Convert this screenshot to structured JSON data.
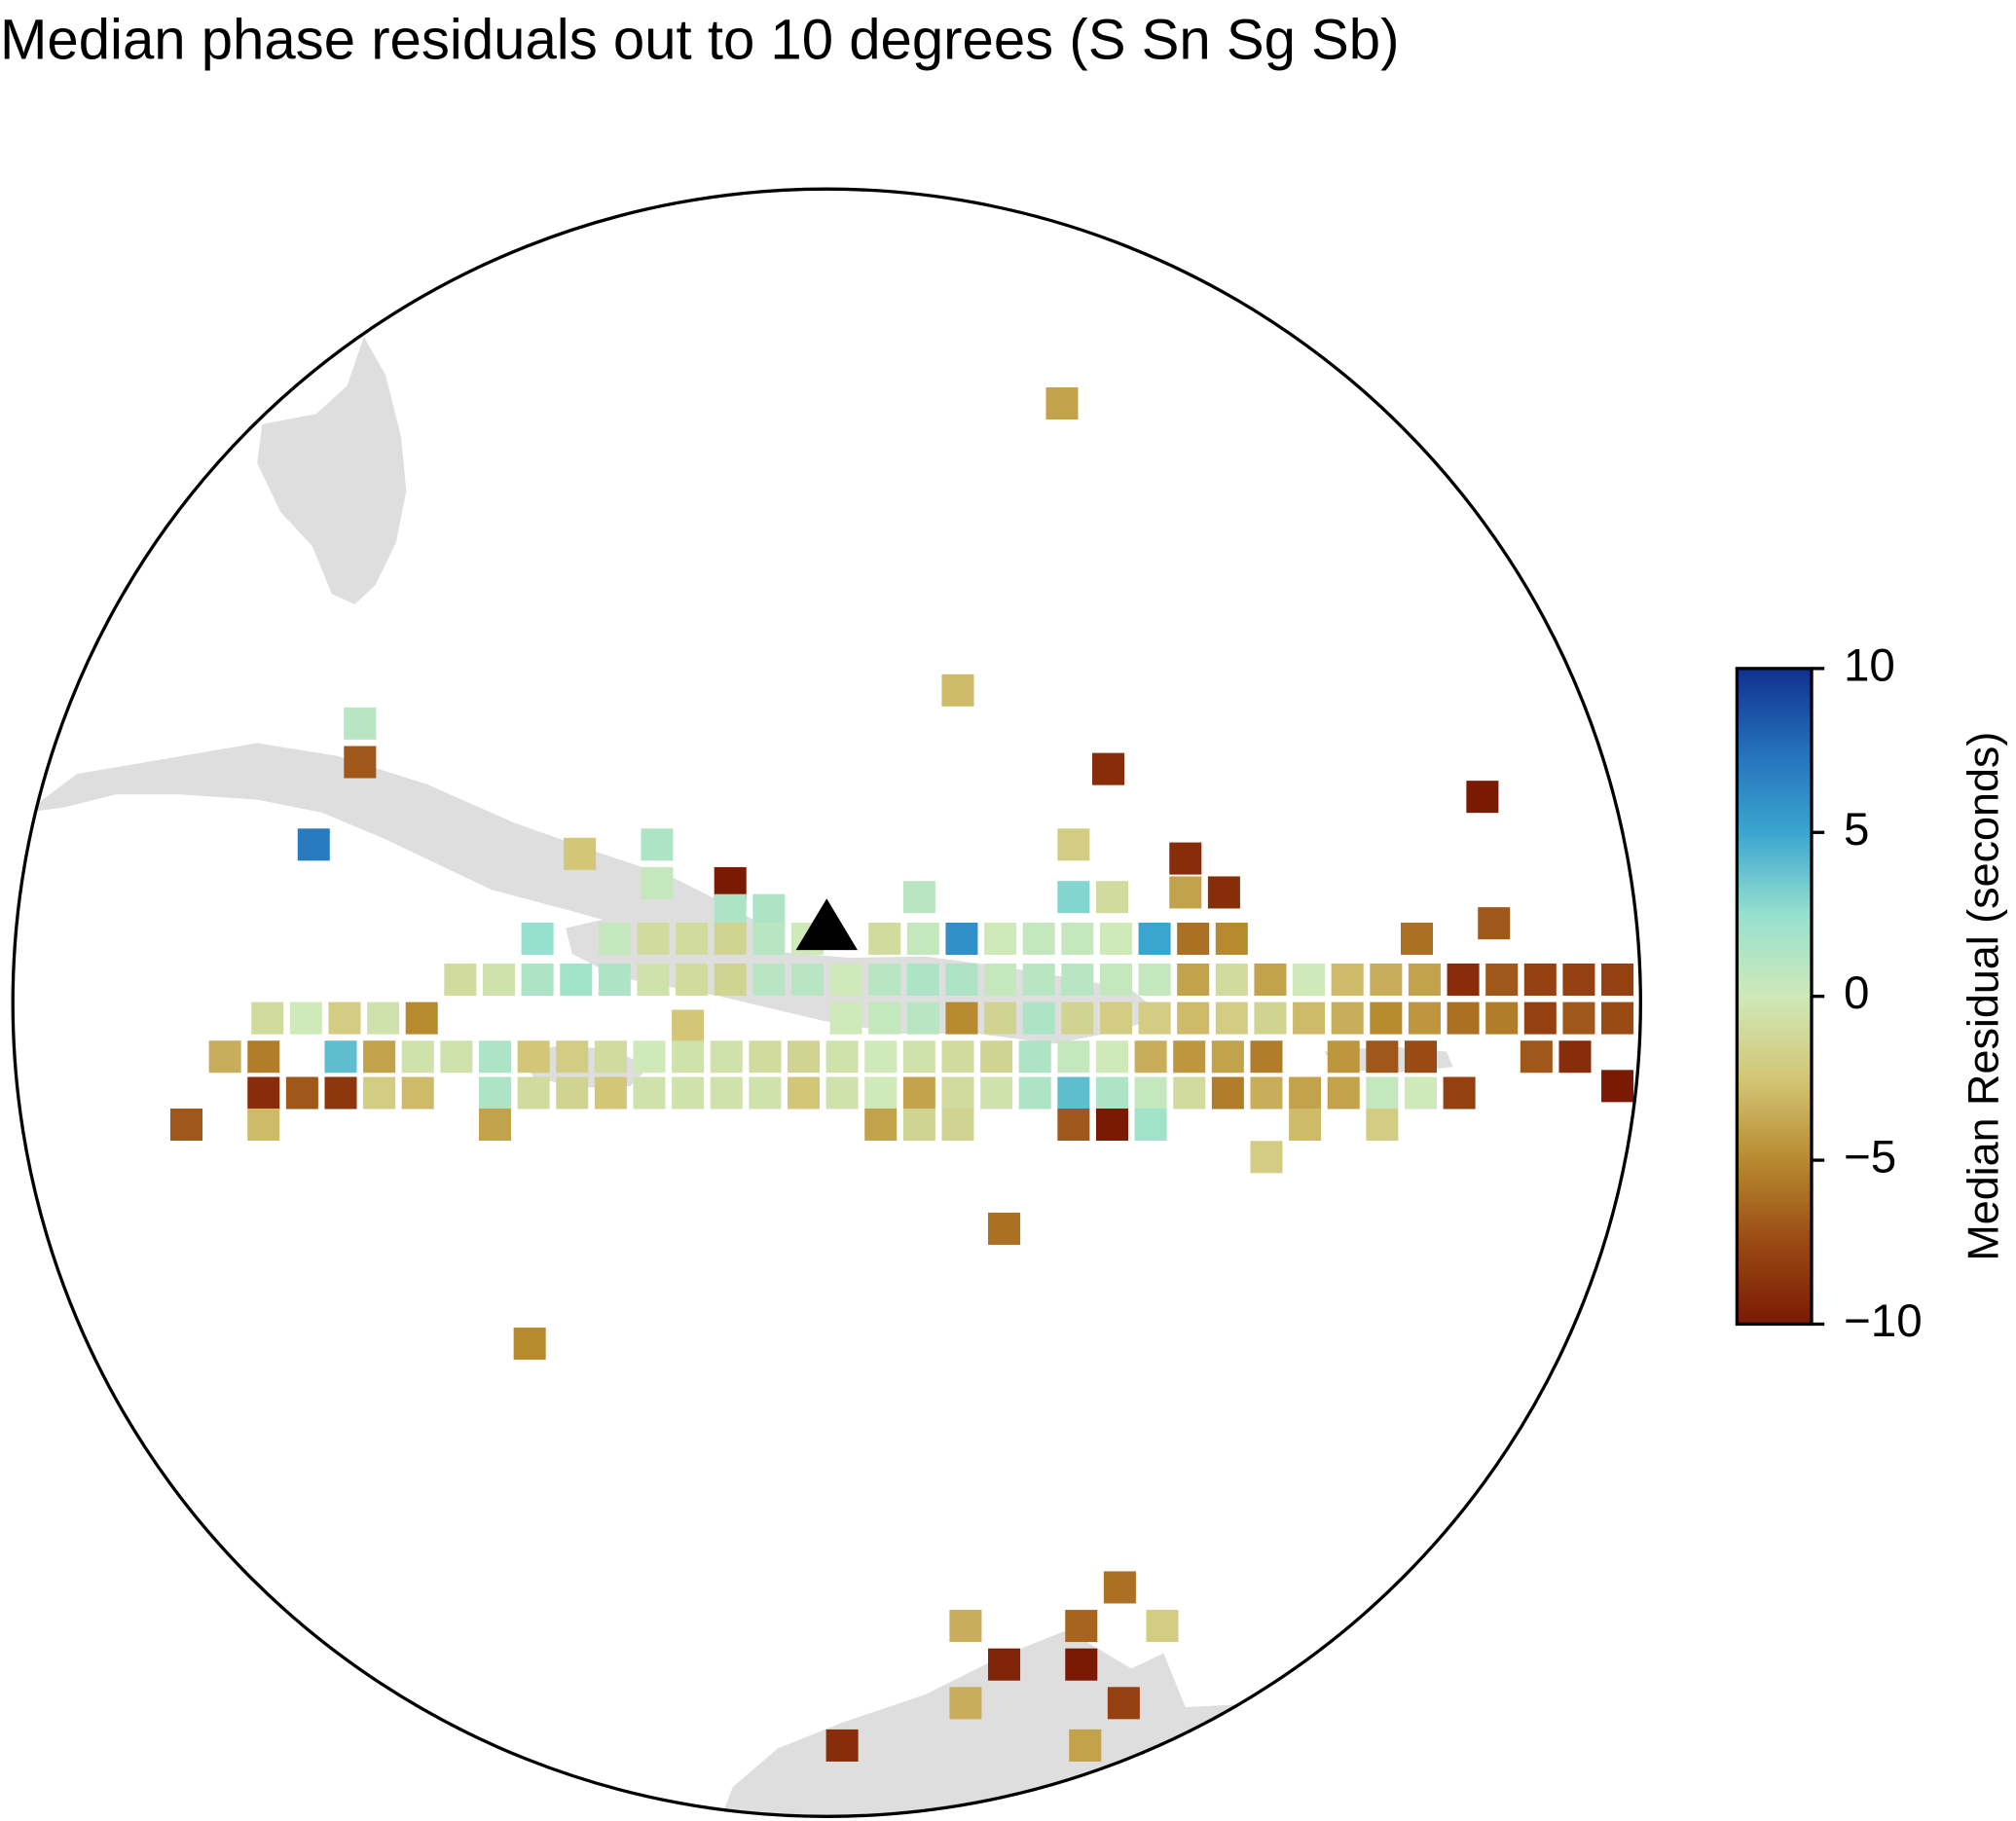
{
  "chart_data": {
    "type": "map",
    "title": "Median phase residuals out to 10 degrees (S Sn Sg Sb)",
    "colorbar_label": "Median Residual (seconds)",
    "clim": [
      -10,
      10
    ],
    "cticks": [
      {
        "value": -10,
        "label": "−10"
      },
      {
        "value": -5,
        "label": "−5"
      },
      0,
      5,
      10
    ],
    "colormap": [
      "#7a1a04",
      "#9a4a14",
      "#b88a30",
      "#d3c676",
      "#cfe9b9",
      "#96e0cf",
      "#3aa6cf",
      "#2470bb",
      "#10308f"
    ],
    "center": {
      "lon": -73,
      "lat": 19
    },
    "station": {
      "lon": -73.0,
      "lat": 20.0
    },
    "cells": [
      {
        "lon": -69.95,
        "lat": 26.77,
        "value": -4
      },
      {
        "lon": -71.3,
        "lat": 23.05,
        "value": -3
      },
      {
        "lon": -79.05,
        "lat": 22.62,
        "value": 1
      },
      {
        "lon": -79.05,
        "lat": 22.12,
        "value": -7
      },
      {
        "lon": -69.35,
        "lat": 22.03,
        "value": -9
      },
      {
        "lon": -64.5,
        "lat": 21.67,
        "value": -10
      },
      {
        "lon": -79.65,
        "lat": 21.05,
        "value": 7
      },
      {
        "lon": -75.2,
        "lat": 21.05,
        "value": 1.5
      },
      {
        "lon": -69.8,
        "lat": 21.05,
        "value": -2
      },
      {
        "lon": -76.2,
        "lat": 20.93,
        "value": -2.5
      },
      {
        "lon": -75.2,
        "lat": 20.55,
        "value": 0.5
      },
      {
        "lon": -74.25,
        "lat": 20.55,
        "value": -10
      },
      {
        "lon": -68.35,
        "lat": 20.87,
        "value": -9
      },
      {
        "lon": -67.85,
        "lat": 20.43,
        "value": -9
      },
      {
        "lon": -68.35,
        "lat": 20.43,
        "value": -4
      },
      {
        "lon": -74.25,
        "lat": 20.2,
        "value": 1.5
      },
      {
        "lon": -73.75,
        "lat": 20.2,
        "value": 1.5
      },
      {
        "lon": -71.8,
        "lat": 20.37,
        "value": 1
      },
      {
        "lon": -69.8,
        "lat": 20.37,
        "value": 3
      },
      {
        "lon": -69.3,
        "lat": 20.37,
        "value": -1
      },
      {
        "lon": -64.35,
        "lat": 20.03,
        "value": -7
      },
      {
        "lon": -76.75,
        "lat": 19.83,
        "value": 2.5
      },
      {
        "lon": -75.75,
        "lat": 19.83,
        "value": 0.5
      },
      {
        "lon": -75.25,
        "lat": 19.83,
        "value": -1
      },
      {
        "lon": -74.75,
        "lat": 19.83,
        "value": -1
      },
      {
        "lon": -74.25,
        "lat": 19.83,
        "value": -1.5
      },
      {
        "lon": -73.75,
        "lat": 19.83,
        "value": 1
      },
      {
        "lon": -73.25,
        "lat": 19.83,
        "value": 0
      },
      {
        "lon": -72.25,
        "lat": 19.83,
        "value": -1
      },
      {
        "lon": -71.75,
        "lat": 19.83,
        "value": 0.5
      },
      {
        "lon": -71.25,
        "lat": 19.83,
        "value": 6
      },
      {
        "lon": -70.75,
        "lat": 19.83,
        "value": 0
      },
      {
        "lon": -70.25,
        "lat": 19.83,
        "value": 0.5
      },
      {
        "lon": -69.75,
        "lat": 19.83,
        "value": 0.5
      },
      {
        "lon": -69.25,
        "lat": 19.83,
        "value": 0
      },
      {
        "lon": -68.75,
        "lat": 19.83,
        "value": 5
      },
      {
        "lon": -68.25,
        "lat": 19.83,
        "value": -6
      },
      {
        "lon": -67.75,
        "lat": 19.83,
        "value": -5
      },
      {
        "lon": -65.35,
        "lat": 19.83,
        "value": -6
      },
      {
        "lon": -77.75,
        "lat": 19.3,
        "value": -1
      },
      {
        "lon": -77.25,
        "lat": 19.3,
        "value": -0.5
      },
      {
        "lon": -76.75,
        "lat": 19.3,
        "value": 1.5
      },
      {
        "lon": -76.25,
        "lat": 19.3,
        "value": 2
      },
      {
        "lon": -75.75,
        "lat": 19.3,
        "value": 1.5
      },
      {
        "lon": -75.25,
        "lat": 19.3,
        "value": -0.5
      },
      {
        "lon": -74.75,
        "lat": 19.3,
        "value": -1
      },
      {
        "lon": -74.25,
        "lat": 19.3,
        "value": -1.5
      },
      {
        "lon": -73.75,
        "lat": 19.3,
        "value": 1
      },
      {
        "lon": -73.25,
        "lat": 19.3,
        "value": 1
      },
      {
        "lon": -72.75,
        "lat": 19.3,
        "value": 0
      },
      {
        "lon": -72.25,
        "lat": 19.3,
        "value": 1
      },
      {
        "lon": -71.75,
        "lat": 19.3,
        "value": 1.5
      },
      {
        "lon": -71.25,
        "lat": 19.3,
        "value": 1.5
      },
      {
        "lon": -70.75,
        "lat": 19.3,
        "value": 0.5
      },
      {
        "lon": -70.25,
        "lat": 19.3,
        "value": 1
      },
      {
        "lon": -69.75,
        "lat": 19.3,
        "value": 1
      },
      {
        "lon": -69.25,
        "lat": 19.3,
        "value": 0.5
      },
      {
        "lon": -68.75,
        "lat": 19.3,
        "value": 0.5
      },
      {
        "lon": -68.25,
        "lat": 19.3,
        "value": -4
      },
      {
        "lon": -67.75,
        "lat": 19.3,
        "value": -1
      },
      {
        "lon": -67.25,
        "lat": 19.3,
        "value": -4
      },
      {
        "lon": -66.75,
        "lat": 19.3,
        "value": 0
      },
      {
        "lon": -66.25,
        "lat": 19.3,
        "value": -3
      },
      {
        "lon": -65.75,
        "lat": 19.3,
        "value": -3.5
      },
      {
        "lon": -65.25,
        "lat": 19.3,
        "value": -4
      },
      {
        "lon": -64.75,
        "lat": 19.3,
        "value": -9
      },
      {
        "lon": -64.25,
        "lat": 19.3,
        "value": -7
      },
      {
        "lon": -63.75,
        "lat": 19.3,
        "value": -8
      },
      {
        "lon": -63.25,
        "lat": 19.3,
        "value": -8
      },
      {
        "lon": -62.75,
        "lat": 19.3,
        "value": -8
      },
      {
        "lon": -80.25,
        "lat": 18.8,
        "value": -1
      },
      {
        "lon": -79.75,
        "lat": 18.8,
        "value": 0
      },
      {
        "lon": -79.25,
        "lat": 18.8,
        "value": -2
      },
      {
        "lon": -78.75,
        "lat": 18.8,
        "value": -0.5
      },
      {
        "lon": -78.25,
        "lat": 18.8,
        "value": -5
      },
      {
        "lon": -72.75,
        "lat": 18.8,
        "value": 0
      },
      {
        "lon": -72.25,
        "lat": 18.8,
        "value": 0.5
      },
      {
        "lon": -71.75,
        "lat": 18.8,
        "value": 1
      },
      {
        "lon": -71.25,
        "lat": 18.8,
        "value": -5
      },
      {
        "lon": -70.75,
        "lat": 18.8,
        "value": -1.5
      },
      {
        "lon": -70.25,
        "lat": 18.8,
        "value": 1.5
      },
      {
        "lon": -69.75,
        "lat": 18.8,
        "value": -1.5
      },
      {
        "lon": -69.25,
        "lat": 18.8,
        "value": -2
      },
      {
        "lon": -68.75,
        "lat": 18.8,
        "value": -2
      },
      {
        "lon": -68.25,
        "lat": 18.8,
        "value": -3
      },
      {
        "lon": -67.75,
        "lat": 18.8,
        "value": -2
      },
      {
        "lon": -67.25,
        "lat": 18.8,
        "value": -1.5
      },
      {
        "lon": -66.75,
        "lat": 18.8,
        "value": -3
      },
      {
        "lon": -66.25,
        "lat": 18.8,
        "value": -3.5
      },
      {
        "lon": -65.75,
        "lat": 18.8,
        "value": -5
      },
      {
        "lon": -65.25,
        "lat": 18.8,
        "value": -4.5
      },
      {
        "lon": -64.75,
        "lat": 18.8,
        "value": -6
      },
      {
        "lon": -64.25,
        "lat": 18.8,
        "value": -5.5
      },
      {
        "lon": -63.75,
        "lat": 18.8,
        "value": -8
      },
      {
        "lon": -63.25,
        "lat": 18.8,
        "value": -7
      },
      {
        "lon": -62.75,
        "lat": 18.8,
        "value": -7.5
      },
      {
        "lon": -74.8,
        "lat": 18.7,
        "value": -2.5
      },
      {
        "lon": -80.8,
        "lat": 18.3,
        "value": -3.5
      },
      {
        "lon": -80.3,
        "lat": 18.3,
        "value": -5.5
      },
      {
        "lon": -79.3,
        "lat": 18.3,
        "value": 4
      },
      {
        "lon": -78.8,
        "lat": 18.3,
        "value": -4
      },
      {
        "lon": -78.3,
        "lat": 18.3,
        "value": -0.5
      },
      {
        "lon": -77.8,
        "lat": 18.3,
        "value": -0.5
      },
      {
        "lon": -77.3,
        "lat": 18.3,
        "value": 1.5
      },
      {
        "lon": -76.8,
        "lat": 18.3,
        "value": -2.5
      },
      {
        "lon": -76.3,
        "lat": 18.3,
        "value": -2
      },
      {
        "lon": -75.8,
        "lat": 18.3,
        "value": -1
      },
      {
        "lon": -75.3,
        "lat": 18.3,
        "value": 0
      },
      {
        "lon": -74.8,
        "lat": 18.3,
        "value": -0.5
      },
      {
        "lon": -74.3,
        "lat": 18.3,
        "value": -0.5
      },
      {
        "lon": -73.8,
        "lat": 18.3,
        "value": -1
      },
      {
        "lon": -73.3,
        "lat": 18.3,
        "value": -1.5
      },
      {
        "lon": -72.8,
        "lat": 18.3,
        "value": -0.5
      },
      {
        "lon": -72.3,
        "lat": 18.3,
        "value": 0
      },
      {
        "lon": -71.8,
        "lat": 18.3,
        "value": -0.5
      },
      {
        "lon": -71.3,
        "lat": 18.3,
        "value": -1
      },
      {
        "lon": -70.8,
        "lat": 18.3,
        "value": -1.5
      },
      {
        "lon": -70.3,
        "lat": 18.3,
        "value": 1.5
      },
      {
        "lon": -69.8,
        "lat": 18.3,
        "value": 0.5
      },
      {
        "lon": -69.3,
        "lat": 18.3,
        "value": 0
      },
      {
        "lon": -68.8,
        "lat": 18.3,
        "value": -3.5
      },
      {
        "lon": -68.3,
        "lat": 18.3,
        "value": -4.5
      },
      {
        "lon": -67.8,
        "lat": 18.3,
        "value": -4
      },
      {
        "lon": -67.3,
        "lat": 18.3,
        "value": -5.5
      },
      {
        "lon": -66.3,
        "lat": 18.3,
        "value": -4.5
      },
      {
        "lon": -65.8,
        "lat": 18.3,
        "value": -7
      },
      {
        "lon": -65.3,
        "lat": 18.3,
        "value": -7.5
      },
      {
        "lon": -63.8,
        "lat": 18.3,
        "value": -7
      },
      {
        "lon": -63.3,
        "lat": 18.3,
        "value": -9
      },
      {
        "lon": -62.75,
        "lat": 17.92,
        "value": -10
      },
      {
        "lon": -80.3,
        "lat": 17.83,
        "value": -9
      },
      {
        "lon": -79.8,
        "lat": 17.83,
        "value": -7
      },
      {
        "lon": -79.3,
        "lat": 17.83,
        "value": -8.5
      },
      {
        "lon": -78.8,
        "lat": 17.83,
        "value": -2
      },
      {
        "lon": -78.3,
        "lat": 17.83,
        "value": -3
      },
      {
        "lon": -77.3,
        "lat": 17.83,
        "value": 1.5
      },
      {
        "lon": -76.8,
        "lat": 17.83,
        "value": -1
      },
      {
        "lon": -76.3,
        "lat": 17.83,
        "value": -1.5
      },
      {
        "lon": -75.8,
        "lat": 17.83,
        "value": -2.5
      },
      {
        "lon": -75.3,
        "lat": 17.83,
        "value": -0.5
      },
      {
        "lon": -74.8,
        "lat": 17.83,
        "value": -0.5
      },
      {
        "lon": -74.3,
        "lat": 17.83,
        "value": -0.5
      },
      {
        "lon": -73.8,
        "lat": 17.83,
        "value": -0.5
      },
      {
        "lon": -73.3,
        "lat": 17.83,
        "value": -2.5
      },
      {
        "lon": -72.8,
        "lat": 17.83,
        "value": -0.5
      },
      {
        "lon": -72.3,
        "lat": 17.83,
        "value": 0
      },
      {
        "lon": -71.8,
        "lat": 17.83,
        "value": -4
      },
      {
        "lon": -71.3,
        "lat": 17.83,
        "value": -1
      },
      {
        "lon": -70.8,
        "lat": 17.83,
        "value": -0.5
      },
      {
        "lon": -70.3,
        "lat": 17.83,
        "value": 1.5
      },
      {
        "lon": -69.8,
        "lat": 17.83,
        "value": 4
      },
      {
        "lon": -69.3,
        "lat": 17.83,
        "value": 1.5
      },
      {
        "lon": -68.8,
        "lat": 17.83,
        "value": 0.5
      },
      {
        "lon": -68.3,
        "lat": 17.83,
        "value": -1
      },
      {
        "lon": -67.8,
        "lat": 17.83,
        "value": -5.5
      },
      {
        "lon": -67.3,
        "lat": 17.83,
        "value": -3.5
      },
      {
        "lon": -66.8,
        "lat": 17.83,
        "value": -4
      },
      {
        "lon": -66.3,
        "lat": 17.83,
        "value": -4
      },
      {
        "lon": -65.8,
        "lat": 17.83,
        "value": 0.5
      },
      {
        "lon": -65.3,
        "lat": 17.83,
        "value": 0
      },
      {
        "lon": -64.8,
        "lat": 17.83,
        "value": -8
      },
      {
        "lon": -81.3,
        "lat": 17.42,
        "value": -7
      },
      {
        "lon": -80.3,
        "lat": 17.42,
        "value": -3
      },
      {
        "lon": -77.3,
        "lat": 17.42,
        "value": -4
      },
      {
        "lon": -72.3,
        "lat": 17.42,
        "value": -4
      },
      {
        "lon": -71.8,
        "lat": 17.42,
        "value": -1.5
      },
      {
        "lon": -71.3,
        "lat": 17.42,
        "value": -1.5
      },
      {
        "lon": -69.8,
        "lat": 17.42,
        "value": -7
      },
      {
        "lon": -69.3,
        "lat": 17.42,
        "value": -10
      },
      {
        "lon": -68.8,
        "lat": 17.42,
        "value": 2
      },
      {
        "lon": -66.8,
        "lat": 17.42,
        "value": -3
      },
      {
        "lon": -65.8,
        "lat": 17.42,
        "value": -2
      },
      {
        "lon": -67.3,
        "lat": 17.0,
        "value": -2
      },
      {
        "lon": -70.7,
        "lat": 16.07,
        "value": -6
      },
      {
        "lon": -76.85,
        "lat": 14.58,
        "value": -5
      },
      {
        "lon": -69.2,
        "lat": 11.42,
        "value": -6
      },
      {
        "lon": -71.2,
        "lat": 10.92,
        "value": -3.5
      },
      {
        "lon": -69.7,
        "lat": 10.92,
        "value": -6.5
      },
      {
        "lon": -68.65,
        "lat": 10.92,
        "value": -2
      },
      {
        "lon": -70.7,
        "lat": 10.42,
        "value": -9.5
      },
      {
        "lon": -69.7,
        "lat": 10.42,
        "value": -10
      },
      {
        "lon": -71.2,
        "lat": 9.92,
        "value": -3.5
      },
      {
        "lon": -69.15,
        "lat": 9.92,
        "value": -8
      },
      {
        "lon": -72.8,
        "lat": 9.37,
        "value": -9
      },
      {
        "lon": -69.65,
        "lat": 9.37,
        "value": -4
      }
    ]
  }
}
